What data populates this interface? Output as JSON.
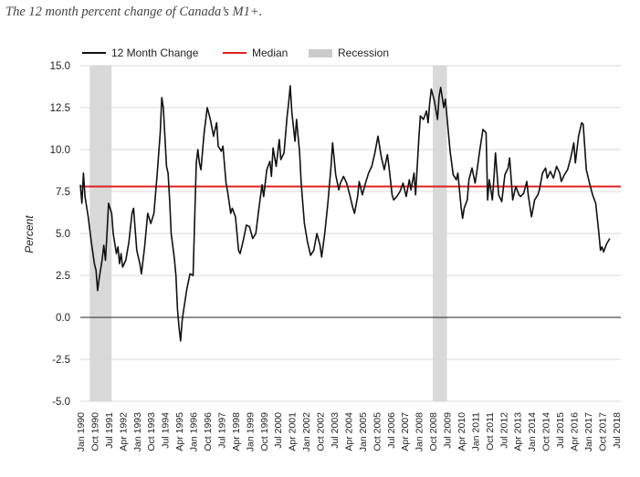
{
  "caption": "The 12 month percent change of Canada’s M1+.",
  "chart_data": {
    "type": "line",
    "title": "",
    "xlabel": "",
    "ylabel": "Percent",
    "ylim": [
      -5.0,
      15.0
    ],
    "yticks": [
      "15.0",
      "12.5",
      "10.0",
      "7.5",
      "5.0",
      "2.5",
      "0.0",
      "-2.5",
      "-5.0"
    ],
    "xlim": [
      "1990-01",
      "2018-10"
    ],
    "xtick_labels": [
      "Jan 1990",
      "Oct 1990",
      "Jul 1991",
      "Apr 1992",
      "Jan 1993",
      "Oct 1993",
      "Jul 1994",
      "Apr 1995",
      "Jan 1996",
      "Oct 1996",
      "Jul 1997",
      "Apr 1998",
      "Jan 1999",
      "Oct 1999",
      "Jul 2000",
      "Apr 2001",
      "Jan 2002",
      "Oct 2002",
      "Jul 2003",
      "Apr 2004",
      "Jan 2005",
      "Oct 2005",
      "Jul 2006",
      "Apr 2007",
      "Jan 2008",
      "Oct 2008",
      "Jul 2009",
      "Apr 2010",
      "Jan 2011",
      "Oct 2011",
      "Jul 2012",
      "Apr 2013",
      "Jan 2014",
      "Oct 2014",
      "Jul 2015",
      "Apr 2016",
      "Jan 2017",
      "Oct 2017",
      "Jul 2018"
    ],
    "legend": {
      "position": "top-left",
      "items": [
        {
          "label": "12 Month Change",
          "color": "#111111",
          "kind": "line"
        },
        {
          "label": "Median",
          "color": "#e02020",
          "kind": "line"
        },
        {
          "label": "Recession",
          "color": "#cccccc",
          "kind": "band"
        }
      ]
    },
    "grid": true,
    "median": 7.8,
    "recessions": [
      {
        "start": "1990-07",
        "end": "1991-09"
      },
      {
        "start": "2008-10",
        "end": "2009-07"
      }
    ],
    "series": [
      {
        "name": "12 Month Change",
        "color": "#111111",
        "points": [
          [
            "1990-01",
            7.9
          ],
          [
            "1990-02",
            6.8
          ],
          [
            "1990-03",
            8.6
          ],
          [
            "1990-04",
            7.2
          ],
          [
            "1990-06",
            6.0
          ],
          [
            "1990-08",
            4.5
          ],
          [
            "1990-10",
            3.2
          ],
          [
            "1990-11",
            2.8
          ],
          [
            "1990-12",
            1.6
          ],
          [
            "1991-01",
            2.3
          ],
          [
            "1991-03",
            3.5
          ],
          [
            "1991-04",
            4.3
          ],
          [
            "1991-05",
            3.4
          ],
          [
            "1991-06",
            5.0
          ],
          [
            "1991-07",
            6.8
          ],
          [
            "1991-09",
            6.2
          ],
          [
            "1991-10",
            5.0
          ],
          [
            "1991-12",
            3.8
          ],
          [
            "1992-01",
            4.2
          ],
          [
            "1992-02",
            3.2
          ],
          [
            "1992-03",
            3.8
          ],
          [
            "1992-04",
            3.0
          ],
          [
            "1992-06",
            3.4
          ],
          [
            "1992-08",
            4.5
          ],
          [
            "1992-10",
            6.2
          ],
          [
            "1992-11",
            6.5
          ],
          [
            "1993-01",
            4.0
          ],
          [
            "1993-03",
            3.2
          ],
          [
            "1993-04",
            2.6
          ],
          [
            "1993-06",
            4.2
          ],
          [
            "1993-08",
            6.2
          ],
          [
            "1993-10",
            5.6
          ],
          [
            "1993-12",
            6.2
          ],
          [
            "1994-02",
            8.5
          ],
          [
            "1994-04",
            11.0
          ],
          [
            "1994-05",
            13.1
          ],
          [
            "1994-06",
            12.5
          ],
          [
            "1994-08",
            9.0
          ],
          [
            "1994-09",
            8.6
          ],
          [
            "1994-10",
            7.0
          ],
          [
            "1994-11",
            5.0
          ],
          [
            "1995-01",
            3.5
          ],
          [
            "1995-02",
            2.5
          ],
          [
            "1995-03",
            0.5
          ],
          [
            "1995-04",
            -0.6
          ],
          [
            "1995-05",
            -1.4
          ],
          [
            "1995-06",
            -0.2
          ],
          [
            "1995-07",
            0.5
          ],
          [
            "1995-09",
            1.7
          ],
          [
            "1995-11",
            2.6
          ],
          [
            "1996-01",
            2.5
          ],
          [
            "1996-02",
            6.0
          ],
          [
            "1996-03",
            9.2
          ],
          [
            "1996-04",
            10.0
          ],
          [
            "1996-05",
            9.2
          ],
          [
            "1996-06",
            8.8
          ],
          [
            "1996-08",
            11.0
          ],
          [
            "1996-10",
            12.5
          ],
          [
            "1996-12",
            11.8
          ],
          [
            "1997-02",
            10.8
          ],
          [
            "1997-04",
            11.6
          ],
          [
            "1997-05",
            10.2
          ],
          [
            "1997-07",
            9.9
          ],
          [
            "1997-08",
            10.2
          ],
          [
            "1997-10",
            8.0
          ],
          [
            "1997-11",
            7.5
          ],
          [
            "1998-01",
            6.2
          ],
          [
            "1998-02",
            6.5
          ],
          [
            "1998-04",
            6.0
          ],
          [
            "1998-06",
            4.0
          ],
          [
            "1998-07",
            3.8
          ],
          [
            "1998-09",
            4.6
          ],
          [
            "1998-11",
            5.5
          ],
          [
            "1999-01",
            5.4
          ],
          [
            "1999-03",
            4.7
          ],
          [
            "1999-05",
            5.0
          ],
          [
            "1999-07",
            6.5
          ],
          [
            "1999-09",
            7.9
          ],
          [
            "1999-10",
            7.2
          ],
          [
            "1999-12",
            8.8
          ],
          [
            "2000-02",
            9.3
          ],
          [
            "2000-03",
            8.4
          ],
          [
            "2000-04",
            10.1
          ],
          [
            "2000-06",
            9.0
          ],
          [
            "2000-08",
            10.6
          ],
          [
            "2000-09",
            9.4
          ],
          [
            "2000-11",
            9.8
          ],
          [
            "2001-01",
            12.0
          ],
          [
            "2001-02",
            12.8
          ],
          [
            "2001-03",
            13.8
          ],
          [
            "2001-04",
            12.2
          ],
          [
            "2001-06",
            10.5
          ],
          [
            "2001-07",
            11.8
          ],
          [
            "2001-09",
            9.8
          ],
          [
            "2001-10",
            8.0
          ],
          [
            "2001-12",
            5.6
          ],
          [
            "2002-02",
            4.5
          ],
          [
            "2002-04",
            3.7
          ],
          [
            "2002-06",
            4.0
          ],
          [
            "2002-08",
            5.0
          ],
          [
            "2002-10",
            4.3
          ],
          [
            "2002-11",
            3.6
          ],
          [
            "2003-01",
            5.0
          ],
          [
            "2003-03",
            6.8
          ],
          [
            "2003-05",
            9.0
          ],
          [
            "2003-06",
            10.4
          ],
          [
            "2003-08",
            8.5
          ],
          [
            "2003-10",
            7.6
          ],
          [
            "2003-11",
            8.0
          ],
          [
            "2004-01",
            8.4
          ],
          [
            "2004-03",
            8.0
          ],
          [
            "2004-05",
            7.3
          ],
          [
            "2004-07",
            6.5
          ],
          [
            "2004-08",
            6.2
          ],
          [
            "2004-10",
            7.2
          ],
          [
            "2004-11",
            8.1
          ],
          [
            "2005-01",
            7.3
          ],
          [
            "2005-03",
            8.0
          ],
          [
            "2005-05",
            8.6
          ],
          [
            "2005-07",
            9.0
          ],
          [
            "2005-09",
            9.8
          ],
          [
            "2005-11",
            10.8
          ],
          [
            "2006-01",
            9.6
          ],
          [
            "2006-03",
            8.8
          ],
          [
            "2006-05",
            9.7
          ],
          [
            "2006-06",
            9.0
          ],
          [
            "2006-08",
            7.3
          ],
          [
            "2006-09",
            7.0
          ],
          [
            "2006-11",
            7.2
          ],
          [
            "2007-01",
            7.5
          ],
          [
            "2007-03",
            8.0
          ],
          [
            "2007-05",
            7.2
          ],
          [
            "2007-07",
            8.2
          ],
          [
            "2007-08",
            7.6
          ],
          [
            "2007-10",
            8.6
          ],
          [
            "2007-11",
            7.3
          ],
          [
            "2008-01",
            10.5
          ],
          [
            "2008-02",
            12.0
          ],
          [
            "2008-04",
            11.8
          ],
          [
            "2008-06",
            12.3
          ],
          [
            "2008-07",
            11.6
          ],
          [
            "2008-08",
            12.8
          ],
          [
            "2008-09",
            13.6
          ],
          [
            "2008-11",
            12.9
          ],
          [
            "2009-01",
            11.8
          ],
          [
            "2009-02",
            13.2
          ],
          [
            "2009-03",
            13.7
          ],
          [
            "2009-05",
            12.5
          ],
          [
            "2009-06",
            13.0
          ],
          [
            "2009-07",
            12.0
          ],
          [
            "2009-09",
            9.9
          ],
          [
            "2009-11",
            8.5
          ],
          [
            "2010-01",
            8.2
          ],
          [
            "2010-02",
            8.6
          ],
          [
            "2010-04",
            6.6
          ],
          [
            "2010-05",
            5.9
          ],
          [
            "2010-06",
            6.5
          ],
          [
            "2010-08",
            7.0
          ],
          [
            "2010-09",
            8.2
          ],
          [
            "2010-11",
            8.9
          ],
          [
            "2011-01",
            8.0
          ],
          [
            "2011-02",
            8.6
          ],
          [
            "2011-04",
            10.0
          ],
          [
            "2011-06",
            11.2
          ],
          [
            "2011-08",
            11.0
          ],
          [
            "2011-09",
            7.0
          ],
          [
            "2011-10",
            8.2
          ],
          [
            "2011-12",
            7.0
          ],
          [
            "2012-01",
            8.3
          ],
          [
            "2012-02",
            9.8
          ],
          [
            "2012-04",
            7.3
          ],
          [
            "2012-06",
            6.9
          ],
          [
            "2012-08",
            8.5
          ],
          [
            "2012-10",
            8.9
          ],
          [
            "2012-11",
            9.5
          ],
          [
            "2013-01",
            7.0
          ],
          [
            "2013-03",
            7.8
          ],
          [
            "2013-05",
            7.3
          ],
          [
            "2013-06",
            7.2
          ],
          [
            "2013-08",
            7.4
          ],
          [
            "2013-10",
            8.1
          ],
          [
            "2013-11",
            7.2
          ],
          [
            "2014-01",
            6.0
          ],
          [
            "2014-03",
            7.0
          ],
          [
            "2014-05",
            7.3
          ],
          [
            "2014-06",
            7.6
          ],
          [
            "2014-08",
            8.6
          ],
          [
            "2014-10",
            8.9
          ],
          [
            "2014-11",
            8.3
          ],
          [
            "2015-01",
            8.7
          ],
          [
            "2015-03",
            8.3
          ],
          [
            "2015-05",
            9.0
          ],
          [
            "2015-07",
            8.6
          ],
          [
            "2015-08",
            8.1
          ],
          [
            "2015-10",
            8.5
          ],
          [
            "2015-12",
            8.8
          ],
          [
            "2016-02",
            9.5
          ],
          [
            "2016-04",
            10.4
          ],
          [
            "2016-05",
            9.2
          ],
          [
            "2016-07",
            10.8
          ],
          [
            "2016-09",
            11.6
          ],
          [
            "2016-10",
            11.5
          ],
          [
            "2016-12",
            8.8
          ],
          [
            "2017-02",
            8.0
          ],
          [
            "2017-04",
            7.3
          ],
          [
            "2017-06",
            6.8
          ],
          [
            "2017-08",
            5.0
          ],
          [
            "2017-09",
            4.0
          ],
          [
            "2017-10",
            4.2
          ],
          [
            "2017-11",
            3.9
          ],
          [
            "2018-01",
            4.4
          ],
          [
            "2018-03",
            4.7
          ]
        ]
      }
    ]
  }
}
